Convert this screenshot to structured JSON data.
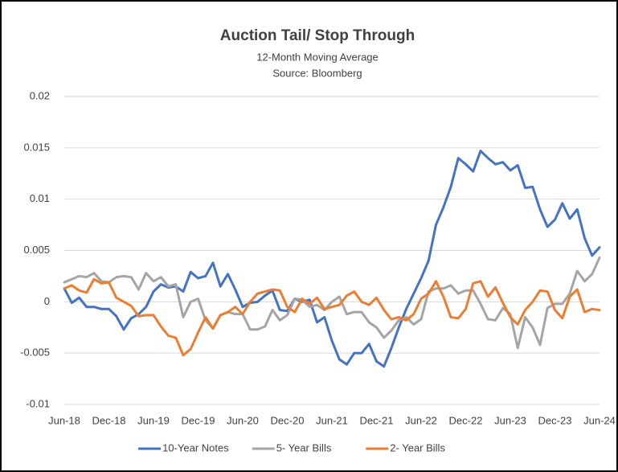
{
  "chart_data": {
    "type": "line",
    "title": "Auction Tail/ Stop Through",
    "subtitle": "12-Month Moving Average",
    "source": "Source: Bloomberg",
    "categories": [
      "Jun-18",
      null,
      null,
      null,
      null,
      null,
      "Dec-18",
      null,
      null,
      null,
      null,
      null,
      "Jun-19",
      null,
      null,
      null,
      null,
      null,
      "Dec-19",
      null,
      null,
      null,
      null,
      null,
      "Jun-20",
      null,
      null,
      null,
      null,
      null,
      "Dec-20",
      null,
      null,
      null,
      null,
      null,
      "Jun-21",
      null,
      null,
      null,
      null,
      null,
      "Dec-21",
      null,
      null,
      null,
      null,
      null,
      "Jun-22",
      null,
      null,
      null,
      null,
      null,
      "Dec-22",
      null,
      null,
      null,
      null,
      null,
      "Jun-23",
      null,
      null,
      null,
      null,
      null,
      "Dec-23",
      null,
      null,
      null,
      null,
      null,
      "Jun-24"
    ],
    "series": [
      {
        "name": "10-Year Notes",
        "color": "#4472c4",
        "values": [
          0.0013,
          -0.0001,
          0.0004,
          -0.0005,
          -0.0005,
          -0.0007,
          -0.0007,
          -0.0014,
          -0.0027,
          -0.0016,
          -0.0012,
          -0.0005,
          0.001,
          0.0017,
          0.0014,
          0.0015,
          0.001,
          0.0029,
          0.0023,
          0.0025,
          0.0038,
          0.0015,
          0.0027,
          0.0012,
          -0.0005,
          -0.0001,
          0.0,
          0.0006,
          0.0011,
          -0.0008,
          -0.0009,
          0.0003,
          0.0,
          0.0002,
          -0.002,
          -0.0015,
          -0.0038,
          -0.0056,
          -0.0061,
          -0.005,
          -0.005,
          -0.0041,
          -0.0058,
          -0.0063,
          -0.0045,
          -0.0025,
          -0.0007,
          0.0008,
          0.0023,
          0.004,
          0.0075,
          0.0092,
          0.0112,
          0.014,
          0.0134,
          0.0127,
          0.0147,
          0.014,
          0.0134,
          0.0136,
          0.0128,
          0.0133,
          0.0111,
          0.0112,
          0.009,
          0.0073,
          0.008,
          0.0096,
          0.0081,
          0.009,
          0.0062,
          0.0045,
          0.0053
        ]
      },
      {
        "name": "5- Year Bills",
        "color": "#a5a5a5",
        "values": [
          0.0019,
          0.0022,
          0.0025,
          0.0024,
          0.0028,
          0.002,
          0.0019,
          0.0024,
          0.0025,
          0.0024,
          0.0012,
          0.0028,
          0.002,
          0.0024,
          0.0015,
          0.0017,
          -0.0015,
          0.0,
          0.0003,
          -0.0018,
          -0.0026,
          -0.0013,
          -0.001,
          -0.0012,
          -0.0012,
          -0.0027,
          -0.0027,
          -0.0024,
          -0.0008,
          -0.0018,
          -0.0013,
          0.0003,
          0.0002,
          -0.0005,
          -0.0003,
          -0.0008,
          0.0,
          0.0005,
          -0.0012,
          -0.001,
          -0.001,
          -0.002,
          -0.0025,
          -0.0035,
          -0.0028,
          -0.0018,
          -0.0015,
          -0.0022,
          -0.0017,
          0.001,
          0.0013,
          0.0013,
          0.0016,
          0.0008,
          0.0011,
          0.0011,
          -0.0002,
          -0.0017,
          -0.0018,
          -0.0006,
          -0.0012,
          -0.0045,
          -0.0015,
          -0.0025,
          -0.0042,
          -0.0006,
          -0.0002,
          -0.0002,
          0.0008,
          0.003,
          0.002,
          0.0027,
          0.0043
        ]
      },
      {
        "name": "2- Year Bills",
        "color": "#ed7d31",
        "values": [
          0.0013,
          0.0016,
          0.0011,
          0.0009,
          0.0022,
          0.0018,
          0.0019,
          0.0004,
          0.0,
          -0.0004,
          -0.0014,
          -0.0013,
          -0.0013,
          -0.0024,
          -0.0033,
          -0.0035,
          -0.0052,
          -0.0046,
          -0.003,
          -0.0015,
          -0.0026,
          -0.0013,
          -0.001,
          -0.0005,
          -0.0012,
          0.0,
          0.0008,
          0.001,
          0.0012,
          0.0011,
          -0.0005,
          -0.001,
          0.0003,
          -0.0002,
          0.0004,
          -0.0007,
          -0.0005,
          -0.0003,
          0.0006,
          0.001,
          0.0,
          -0.0003,
          0.0004,
          -0.0008,
          -0.0017,
          -0.0015,
          -0.0018,
          -0.0012,
          0.0003,
          0.0008,
          0.002,
          0.0005,
          -0.0015,
          -0.0016,
          -0.0007,
          0.0018,
          0.002,
          0.0005,
          0.0014,
          -0.0001,
          -0.0015,
          -0.0022,
          -0.0008,
          0.0,
          0.0011,
          0.001,
          -0.0008,
          -0.0016,
          0.0005,
          0.0012,
          -0.001,
          -0.0007,
          -0.0008
        ]
      }
    ],
    "ylim": [
      -0.01,
      0.02
    ],
    "yticks": [
      -0.01,
      -0.005,
      0,
      0.005,
      0.01,
      0.015,
      0.02
    ],
    "grid": true,
    "legend": "bottom"
  }
}
